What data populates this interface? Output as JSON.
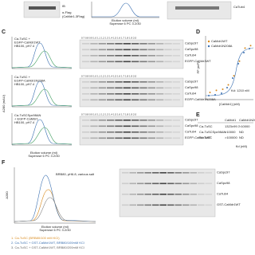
{
  "top": {
    "blot_label": "IB",
    "antibody": "α-Flag",
    "antibody_sub": "(CaMdr1-3Flag)",
    "x_axis": "Elution volume (ml)",
    "column": "Superose 6 PC 3.2/30",
    "gel_label": "CaTub4"
  },
  "panel_c": {
    "letter": "C",
    "y_axis": "A280 (mAU)",
    "x_axis": "Elution volume (ml)",
    "column": "Superose 6 PC 3.2/30",
    "fractions": "0.7 0.8 0.9 1.0 1.1 1.2 1.3 1.4 1.5 1.6 1.7 1.8 1.9 2.0",
    "rows": [
      {
        "condition": [
          "Ca-TuSC +",
          "EGFP-CaMdr1WT",
          "HB100, pH7.4"
        ],
        "gel_labels": [
          "CaSpc97",
          "CaSpc98",
          "CaTub4",
          "EGFP-CaMdr1WT"
        ]
      },
      {
        "condition": [
          "Ca-TuSC +",
          "EGFP-CaMdr1N208A",
          "HB100, pH7.4"
        ],
        "gel_labels": [
          "CaSpc97",
          "CaSpc98",
          "CaTub4",
          "EGFP-CaMdr1N208A"
        ]
      },
      {
        "condition": [
          "Ca-TuSCSpc98ΔN",
          "+ EGFP-CaMdr1",
          "HB100, pH7.4"
        ],
        "gel_labels": [
          "CaSpc97",
          "CaSpc98",
          "CaTub4",
          "EGFP-CaMdr1WT"
        ]
      }
    ]
  },
  "panel_d": {
    "letter": "D",
    "legend": [
      "CaMdr1WT",
      "CaMdr1N208A"
    ],
    "y_axis": "FP (mP)",
    "x_axis": "[CaMdr1] (nM)",
    "kd": "Kd: 1210 nM"
  },
  "panel_e": {
    "letter": "E",
    "header": [
      "",
      "CaMdr1",
      "CaMdr1N208A"
    ],
    "rows": [
      [
        "Ca-TuSC",
        "1323±99.7",
        "&gt;10000"
      ],
      [
        "Ca-TuSCSpc98ΔN",
        "&gt;10000",
        "ND"
      ],
      [
        "Sc-TuSC",
        "&gt;100000",
        "ND"
      ]
    ],
    "unit": "Kd (nM)"
  },
  "panel_f": {
    "letter": "F",
    "condition": "BRB80, pH6.8, various salt",
    "y_axis": "A280",
    "x_axis": "Elution volume (ml)",
    "column": "Superose 6 PC 3.2/30",
    "legend": [
      "1. Ca-TuSC (BRB80/100 mM KCl)",
      "2. Ca-TuSC + GST-CaMdr1WT, BRB80/100mM KCl",
      "3. Ca-TuSC + GST-CaMdr1WT, BRB80/200mM KCl"
    ],
    "gel_labels": [
      "CaSpc97",
      "CaSpc98",
      "CaTub4",
      "GST-CaMdr1WT"
    ]
  }
}
